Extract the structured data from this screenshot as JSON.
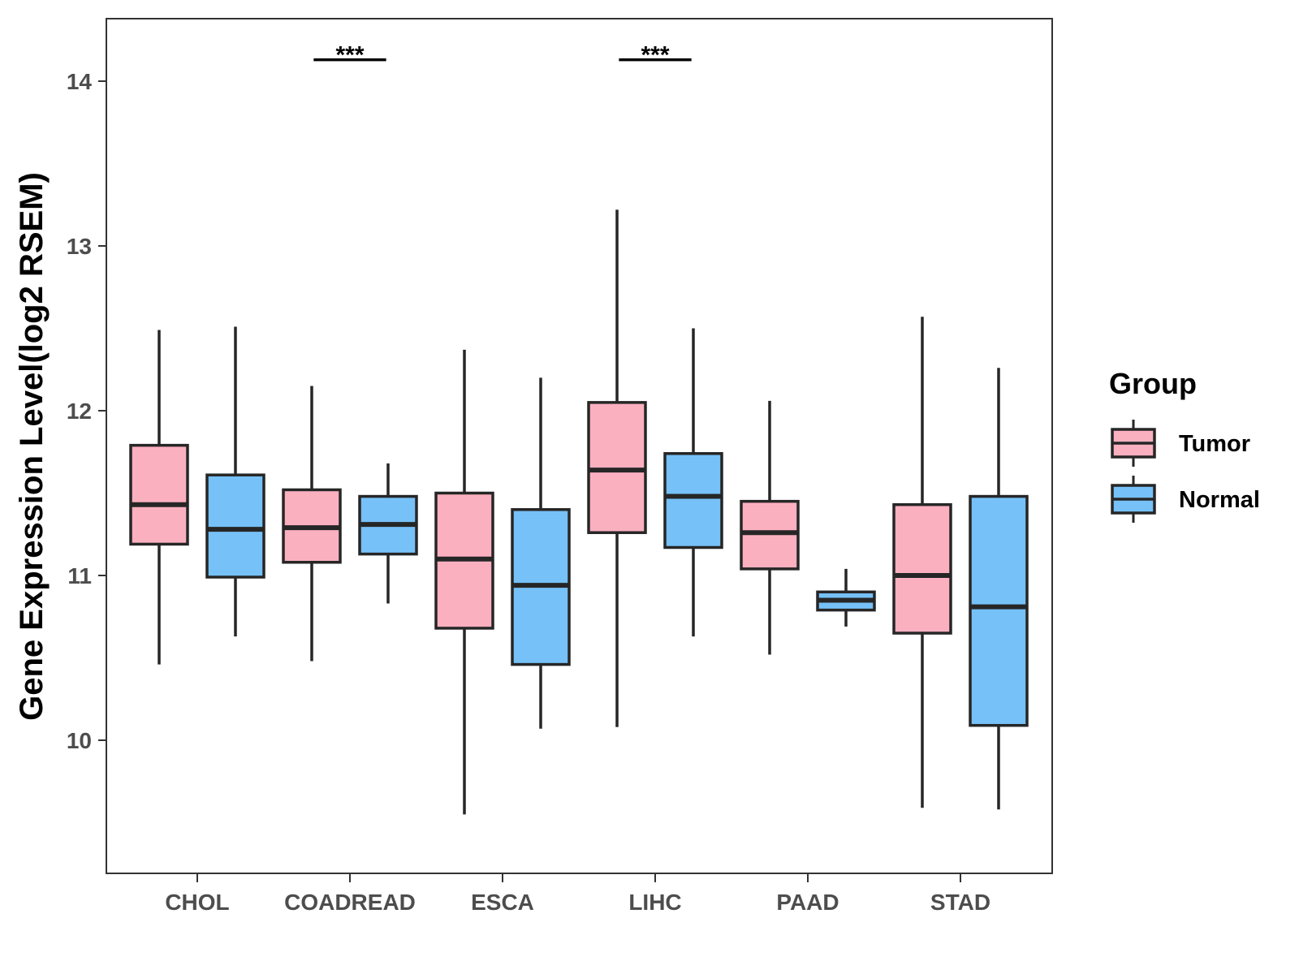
{
  "chart_data": {
    "type": "boxplot",
    "title": "",
    "xlabel": "",
    "ylabel": "Gene Expression Level(log2 RSEM)",
    "ylim": [
      9.2,
      14.4
    ],
    "yticks": [
      10,
      11,
      12,
      13,
      14
    ],
    "ytick_labels": [
      "10",
      "11",
      "12",
      "13",
      "14"
    ],
    "grid": false,
    "categories": [
      "CHOL",
      "COADREAD",
      "ESCA",
      "LIHC",
      "PAAD",
      "STAD"
    ],
    "legend": {
      "title": "Group",
      "position": "right"
    },
    "series": [
      {
        "name": "Tumor",
        "color": "#FBB0C0",
        "boxes": [
          {
            "category": "CHOL",
            "whisker_low": 10.46,
            "q1": 11.19,
            "median": 11.43,
            "q3": 11.79,
            "whisker_high": 12.49
          },
          {
            "category": "COADREAD",
            "whisker_low": 10.48,
            "q1": 11.08,
            "median": 11.29,
            "q3": 11.52,
            "whisker_high": 12.15
          },
          {
            "category": "ESCA",
            "whisker_low": 9.55,
            "q1": 10.68,
            "median": 11.1,
            "q3": 11.5,
            "whisker_high": 12.37
          },
          {
            "category": "LIHC",
            "whisker_low": 10.08,
            "q1": 11.26,
            "median": 11.64,
            "q3": 12.05,
            "whisker_high": 13.22
          },
          {
            "category": "PAAD",
            "whisker_low": 10.52,
            "q1": 11.04,
            "median": 11.26,
            "q3": 11.45,
            "whisker_high": 12.06
          },
          {
            "category": "STAD",
            "whisker_low": 9.59,
            "q1": 10.65,
            "median": 11.0,
            "q3": 11.43,
            "whisker_high": 12.57
          }
        ]
      },
      {
        "name": "Normal",
        "color": "#76C1F7",
        "boxes": [
          {
            "category": "CHOL",
            "whisker_low": 10.63,
            "q1": 10.99,
            "median": 11.28,
            "q3": 11.61,
            "whisker_high": 12.51
          },
          {
            "category": "COADREAD",
            "whisker_low": 10.83,
            "q1": 11.13,
            "median": 11.31,
            "q3": 11.48,
            "whisker_high": 11.68
          },
          {
            "category": "ESCA",
            "whisker_low": 10.07,
            "q1": 10.46,
            "median": 10.94,
            "q3": 11.4,
            "whisker_high": 12.2
          },
          {
            "category": "LIHC",
            "whisker_low": 10.63,
            "q1": 11.17,
            "median": 11.48,
            "q3": 11.74,
            "whisker_high": 12.5
          },
          {
            "category": "PAAD",
            "whisker_low": 10.69,
            "q1": 10.79,
            "median": 10.85,
            "q3": 10.9,
            "whisker_high": 11.04
          },
          {
            "category": "STAD",
            "whisker_low": 9.58,
            "q1": 10.09,
            "median": 10.81,
            "q3": 11.48,
            "whisker_high": 12.26
          }
        ]
      }
    ],
    "annotations": [
      {
        "category": "COADREAD",
        "label": "***",
        "y": 14.13
      },
      {
        "category": "LIHC",
        "label": "***",
        "y": 14.13
      }
    ]
  }
}
